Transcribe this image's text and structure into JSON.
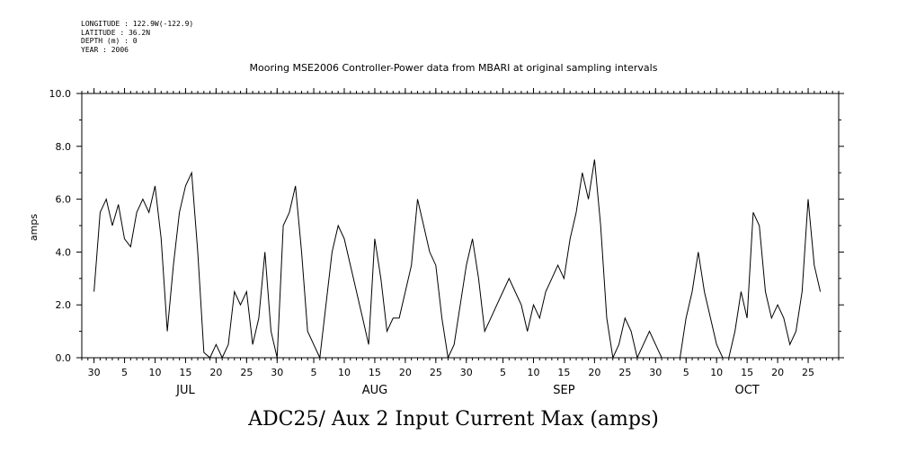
{
  "meta": {
    "longitude": "LONGITUDE : 122.9W(-122.9)",
    "latitude": "LATITUDE : 36.2N",
    "depth": "DEPTH (m) : 0",
    "year": "YEAR : 2006"
  },
  "chart_data": {
    "type": "line",
    "title": "Mooring MSE2006 Controller-Power data from MBARI at original sampling intervals",
    "xlabel": "ADC25/ Aux 2 Input Current Max (amps)",
    "ylabel": "amps",
    "ylim": [
      0,
      10
    ],
    "yticks": [
      "0.0",
      "2.0",
      "4.0",
      "6.0",
      "8.0",
      "10.0"
    ],
    "xrange": [
      "2006-06-28",
      "2006-10-30"
    ],
    "day_ticks": [
      {
        "label": "30",
        "date": "2006-06-30"
      },
      {
        "label": "5",
        "date": "2006-07-05"
      },
      {
        "label": "10",
        "date": "2006-07-10"
      },
      {
        "label": "15",
        "date": "2006-07-15"
      },
      {
        "label": "20",
        "date": "2006-07-20"
      },
      {
        "label": "25",
        "date": "2006-07-25"
      },
      {
        "label": "30",
        "date": "2006-07-30"
      },
      {
        "label": "5",
        "date": "2006-08-05"
      },
      {
        "label": "10",
        "date": "2006-08-10"
      },
      {
        "label": "15",
        "date": "2006-08-15"
      },
      {
        "label": "20",
        "date": "2006-08-20"
      },
      {
        "label": "25",
        "date": "2006-08-25"
      },
      {
        "label": "30",
        "date": "2006-08-30"
      },
      {
        "label": "5",
        "date": "2006-09-05"
      },
      {
        "label": "10",
        "date": "2006-09-10"
      },
      {
        "label": "15",
        "date": "2006-09-15"
      },
      {
        "label": "20",
        "date": "2006-09-20"
      },
      {
        "label": "25",
        "date": "2006-09-25"
      },
      {
        "label": "30",
        "date": "2006-09-30"
      },
      {
        "label": "5",
        "date": "2006-10-05"
      },
      {
        "label": "10",
        "date": "2006-10-10"
      },
      {
        "label": "15",
        "date": "2006-10-15"
      },
      {
        "label": "20",
        "date": "2006-10-20"
      },
      {
        "label": "25",
        "date": "2006-10-25"
      }
    ],
    "months": [
      {
        "label": "JUL",
        "date": "2006-07-15"
      },
      {
        "label": "AUG",
        "date": "2006-08-15"
      },
      {
        "label": "SEP",
        "date": "2006-09-15"
      },
      {
        "label": "OCT",
        "date": "2006-10-15"
      }
    ],
    "grid": false,
    "series": [
      {
        "color": "#000000",
        "x": [
          "2006-06-30",
          "2006-07-01",
          "2006-07-02",
          "2006-07-03",
          "2006-07-04",
          "2006-07-05",
          "2006-07-06",
          "2006-07-07",
          "2006-07-08",
          "2006-07-09",
          "2006-07-10",
          "2006-07-11",
          "2006-07-12",
          "2006-07-13",
          "2006-07-14",
          "2006-07-15",
          "2006-07-16",
          "2006-07-17",
          "2006-07-18",
          "2006-07-19",
          "2006-07-20",
          "2006-07-21",
          "2006-07-22",
          "2006-07-23",
          "2006-07-24",
          "2006-07-25",
          "2006-07-26",
          "2006-07-27",
          "2006-07-28",
          "2006-07-29",
          "2006-07-30",
          "2006-07-31",
          "2006-08-01",
          "2006-08-02",
          "2006-08-03",
          "2006-08-04",
          "2006-08-05",
          "2006-08-06",
          "2006-08-07",
          "2006-08-08",
          "2006-08-09",
          "2006-08-10",
          "2006-08-11",
          "2006-08-12",
          "2006-08-13",
          "2006-08-14",
          "2006-08-15",
          "2006-08-16",
          "2006-08-17",
          "2006-08-18",
          "2006-08-19",
          "2006-08-20",
          "2006-08-21",
          "2006-08-22",
          "2006-08-23",
          "2006-08-24",
          "2006-08-25",
          "2006-08-26",
          "2006-08-27",
          "2006-08-28",
          "2006-08-29",
          "2006-08-30",
          "2006-08-31",
          "2006-09-01",
          "2006-09-02",
          "2006-09-03",
          "2006-09-04",
          "2006-09-05",
          "2006-09-06",
          "2006-09-07",
          "2006-09-08",
          "2006-09-09",
          "2006-09-10",
          "2006-09-11",
          "2006-09-12",
          "2006-09-13",
          "2006-09-14",
          "2006-09-15",
          "2006-09-16",
          "2006-09-17",
          "2006-09-18",
          "2006-09-19",
          "2006-09-20",
          "2006-09-21",
          "2006-09-22",
          "2006-09-23",
          "2006-09-24",
          "2006-09-25",
          "2006-09-26",
          "2006-09-27",
          "2006-09-28",
          "2006-09-29",
          "2006-09-30",
          "2006-10-01",
          "2006-10-02",
          "2006-10-03",
          "2006-10-04",
          "2006-10-05",
          "2006-10-06",
          "2006-10-07",
          "2006-10-08",
          "2006-10-09",
          "2006-10-10",
          "2006-10-11",
          "2006-10-12",
          "2006-10-13",
          "2006-10-14",
          "2006-10-15",
          "2006-10-16",
          "2006-10-17",
          "2006-10-18",
          "2006-10-19",
          "2006-10-20",
          "2006-10-21",
          "2006-10-22",
          "2006-10-23",
          "2006-10-24",
          "2006-10-25",
          "2006-10-26",
          "2006-10-27"
        ],
        "y": [
          2.5,
          5.5,
          6.0,
          5.0,
          5.8,
          4.5,
          4.2,
          5.5,
          6.0,
          5.5,
          6.5,
          4.5,
          1.0,
          3.5,
          5.5,
          6.5,
          7.0,
          4.0,
          0.2,
          0.0,
          0.5,
          0.0,
          0.5,
          2.5,
          2.0,
          2.5,
          0.5,
          1.5,
          4.0,
          1.0,
          0.0,
          5.0,
          5.5,
          6.5,
          4.0,
          1.0,
          0.5,
          0.0,
          2.0,
          4.0,
          5.0,
          4.5,
          3.5,
          2.5,
          1.5,
          0.5,
          4.5,
          3.0,
          1.0,
          1.5,
          1.5,
          2.5,
          3.5,
          6.0,
          5.0,
          4.0,
          3.5,
          1.5,
          0.0,
          0.5,
          2.0,
          3.5,
          4.5,
          3.0,
          1.0,
          1.5,
          2.0,
          2.5,
          3.0,
          2.5,
          2.0,
          1.0,
          2.0,
          1.5,
          2.5,
          3.0,
          3.5,
          3.0,
          4.5,
          5.5,
          7.0,
          6.0,
          7.5,
          5.0,
          1.5,
          0.0,
          0.5,
          1.5,
          1.0,
          0.0,
          0.5,
          1.0,
          0.5,
          0.0,
          0.0,
          0.0,
          0.0,
          1.5,
          2.5,
          4.0,
          2.5,
          1.5,
          0.5,
          0.0,
          0.0,
          1.0,
          2.5,
          1.5,
          5.5,
          5.0,
          2.5,
          1.5,
          2.0,
          1.5,
          0.5,
          1.0,
          2.5,
          6.0,
          3.5,
          2.5
        ]
      }
    ]
  }
}
